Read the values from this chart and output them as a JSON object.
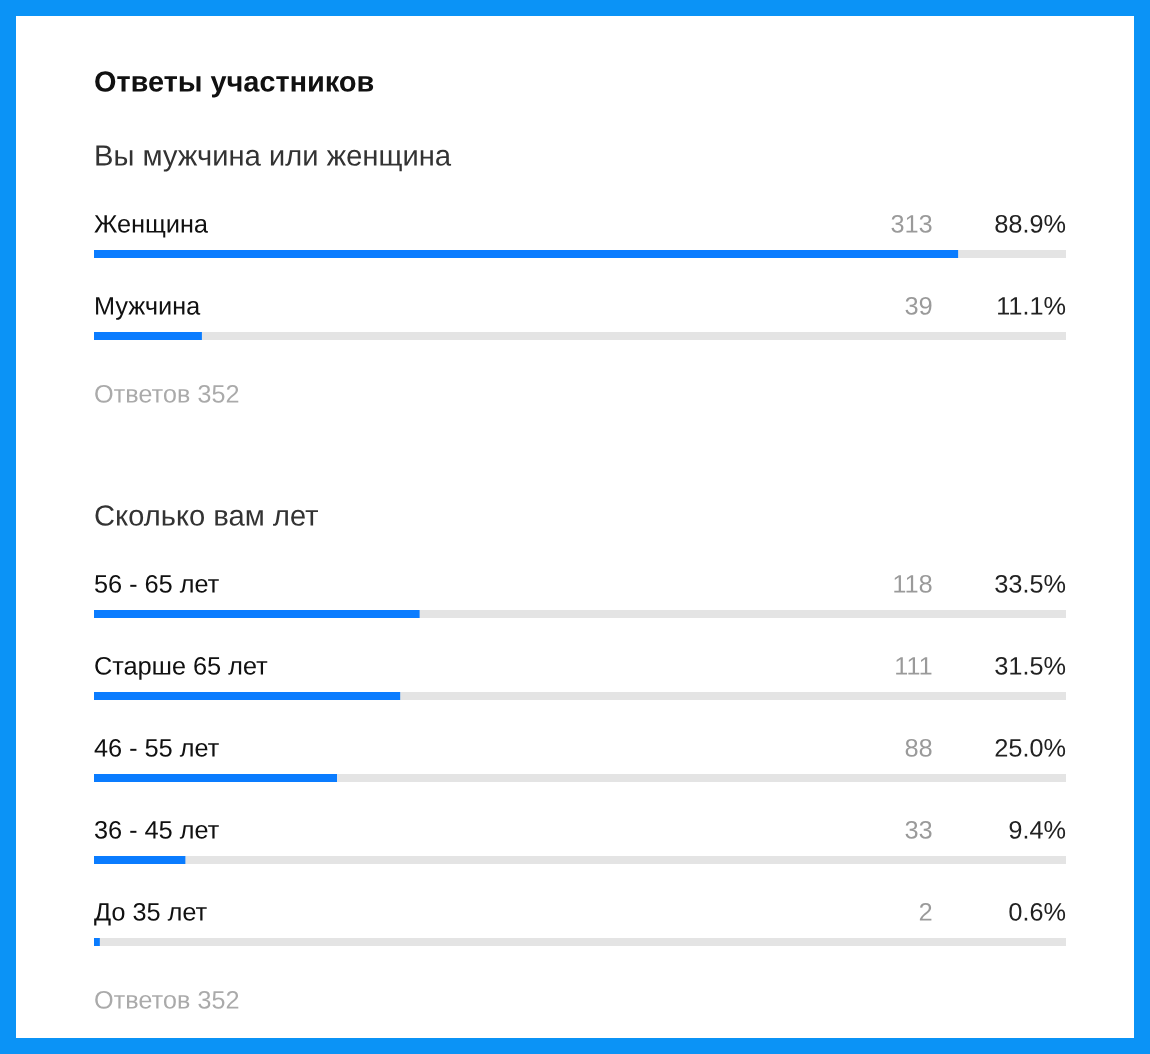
{
  "chart_data": [
    {
      "type": "bar",
      "orientation": "horizontal",
      "title": "Ответы участников",
      "subtitle": "Вы мужчина или женщина",
      "categories": [
        "Женщина",
        "Мужчина"
      ],
      "xlim": [
        0,
        100
      ],
      "tick_labels": "y",
      "grid": "y",
      "series": [
        {
          "color": "#0a7cff",
          "values": [
            88.9,
            11.1
          ],
          "value_labels": [
            "88.9%",
            "11.1%"
          ]
        }
      ],
      "annotations": [
        "313",
        "39",
        "Ответов 352"
      ]
    },
    {
      "type": "bar",
      "orientation": "horizontal",
      "subtitle": "Сколько вам лет",
      "categories": [
        "56 - 65 лет",
        "Старше 65 лет",
        "46 - 55 лет",
        "36 - 45 лет",
        "До 35 лет"
      ],
      "xlim": [
        0,
        100
      ],
      "tick_labels": "y",
      "grid": "y",
      "series": [
        {
          "color": "#0a7cff",
          "values": [
            33.5,
            31.5,
            25.0,
            9.4,
            0.6
          ],
          "value_labels": [
            "33.5%",
            "31.5%",
            "25.0%",
            "9.4%",
            "0.6%"
          ]
        }
      ],
      "annotations": [
        "118",
        "111",
        "88",
        "33",
        "2",
        "Ответов 352"
      ]
    }
  ]
}
